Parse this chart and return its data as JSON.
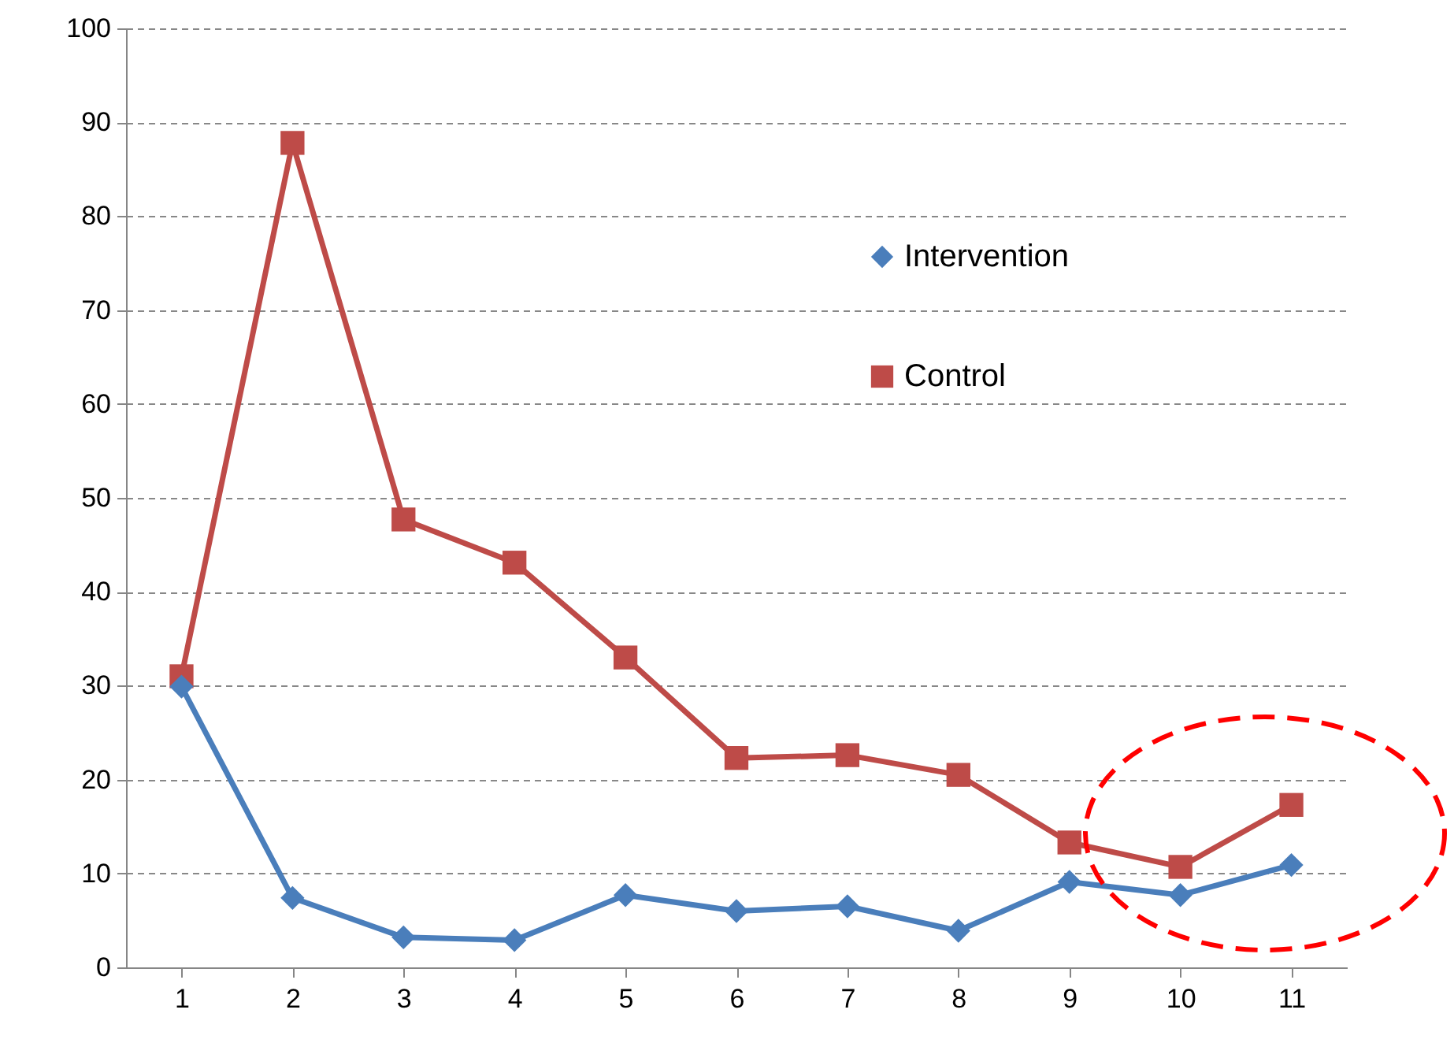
{
  "chart_data": {
    "type": "line",
    "categories": [
      "1",
      "2",
      "3",
      "4",
      "5",
      "6",
      "7",
      "8",
      "9",
      "10",
      "11"
    ],
    "series": [
      {
        "name": "Intervention",
        "color": "#4a7ebb",
        "marker": "diamond",
        "values": [
          29.9,
          7.4,
          3.2,
          2.9,
          7.7,
          6.0,
          6.5,
          3.9,
          9.1,
          7.7,
          10.9
        ]
      },
      {
        "name": "Control",
        "color": "#be4b48",
        "marker": "square",
        "values": [
          31.0,
          87.8,
          47.7,
          43.1,
          33.0,
          22.3,
          22.6,
          20.5,
          13.3,
          10.7,
          17.3
        ]
      }
    ],
    "ylim": [
      0,
      100
    ],
    "yticks": [
      0,
      10,
      20,
      30,
      40,
      50,
      60,
      70,
      80,
      90,
      100
    ],
    "grid": "y",
    "legend": "top right",
    "line_style": "solid"
  }
}
